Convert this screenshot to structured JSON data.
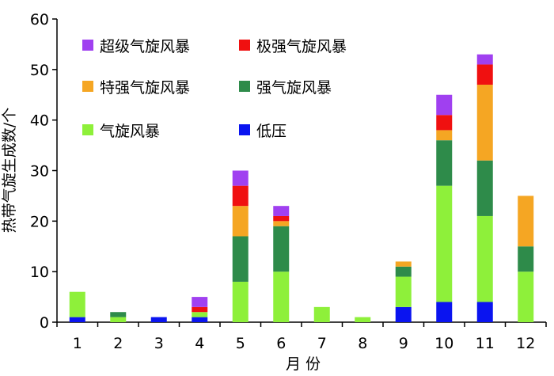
{
  "chart_data": {
    "type": "bar",
    "stacked": true,
    "categories": [
      "1",
      "2",
      "3",
      "4",
      "5",
      "6",
      "7",
      "8",
      "9",
      "10",
      "11",
      "12"
    ],
    "xlabel": "月 份",
    "ylabel": "热带气旋生成数/个",
    "ylim": [
      0,
      60
    ],
    "yticks": [
      0,
      10,
      20,
      30,
      40,
      50,
      60
    ],
    "grid": false,
    "legend_position": "top-left",
    "series": [
      {
        "name": "低压",
        "color": "#0a14f0",
        "values": [
          1,
          0,
          1,
          1,
          0,
          0,
          0,
          0,
          3,
          4,
          4,
          0
        ]
      },
      {
        "name": "气旋风暴",
        "color": "#8ef03a",
        "values": [
          5,
          1,
          0,
          1,
          8,
          10,
          3,
          1,
          6,
          23,
          17,
          10
        ]
      },
      {
        "name": "强气旋风暴",
        "color": "#2e8b4a",
        "values": [
          0,
          1,
          0,
          0,
          9,
          9,
          0,
          0,
          2,
          9,
          11,
          5
        ]
      },
      {
        "name": "特强气旋风暴",
        "color": "#f5a623",
        "values": [
          0,
          0,
          0,
          0,
          6,
          1,
          0,
          0,
          1,
          2,
          15,
          10
        ]
      },
      {
        "name": "极强气旋风暴",
        "color": "#f01010",
        "values": [
          0,
          0,
          0,
          1,
          4,
          1,
          0,
          0,
          0,
          3,
          4,
          0
        ]
      },
      {
        "name": "超级气旋风暴",
        "color": "#a040f0",
        "values": [
          0,
          0,
          0,
          2,
          3,
          2,
          0,
          0,
          0,
          4,
          2,
          0
        ]
      }
    ],
    "legend_order": [
      "超级气旋风暴",
      "极强气旋风暴",
      "特强气旋风暴",
      "强气旋风暴",
      "气旋风暴",
      "低压"
    ]
  }
}
